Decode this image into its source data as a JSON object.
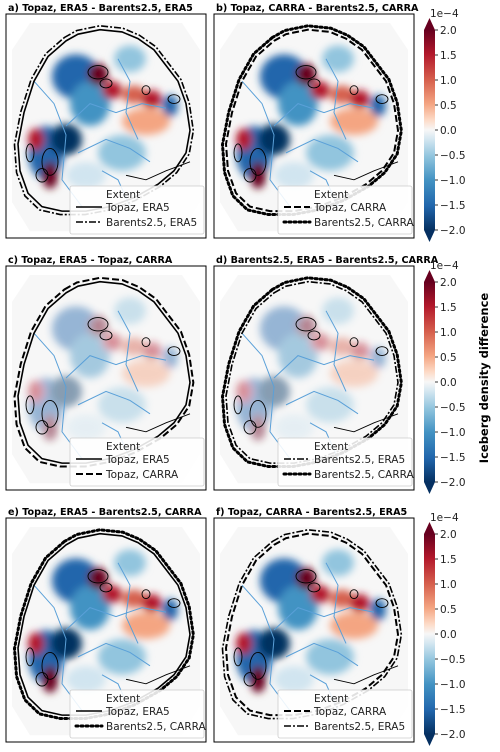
{
  "panels": [
    {
      "title": "a)  Topaz, ERA5 - Barents2.5, ERA5",
      "legend": {
        "title": "Extent",
        "entries": [
          {
            "label": "Topaz, ERA5",
            "style": "solid"
          },
          {
            "label": "Barents2.5, ERA5",
            "style": "dashdot"
          }
        ]
      }
    },
    {
      "title": "b)  Topaz, CARRA - Barents2.5, CARRA",
      "legend": {
        "title": "Extent",
        "entries": [
          {
            "label": "Topaz, CARRA",
            "style": "dashed"
          },
          {
            "label": "Barents2.5, CARRA",
            "style": "dotted"
          }
        ]
      }
    },
    {
      "title": "c)  Topaz, ERA5 - Topaz, CARRA",
      "legend": {
        "title": "Extent",
        "entries": [
          {
            "label": "Topaz, ERA5",
            "style": "solid"
          },
          {
            "label": "Topaz, CARRA",
            "style": "dashed"
          }
        ]
      }
    },
    {
      "title": "d)  Barents2.5, ERA5 - Barents2.5, CARRA",
      "legend": {
        "title": "Extent",
        "entries": [
          {
            "label": "Barents2.5, ERA5",
            "style": "dashdot"
          },
          {
            "label": "Barents2.5, CARRA",
            "style": "dotted"
          }
        ]
      }
    },
    {
      "title": "e)  Topaz, ERA5 - Barents2.5, CARRA",
      "legend": {
        "title": "Extent",
        "entries": [
          {
            "label": "Topaz, ERA5",
            "style": "solid"
          },
          {
            "label": "Barents2.5, CARRA",
            "style": "dotted"
          }
        ]
      }
    },
    {
      "title": "f)  Topaz, CARRA - Barents2.5, ERA5",
      "legend": {
        "title": "Extent",
        "entries": [
          {
            "label": "Topaz, CARRA",
            "style": "dashed"
          },
          {
            "label": "Barents2.5, ERA5",
            "style": "dashdot"
          }
        ]
      }
    }
  ],
  "colorbar": {
    "label": "Iceberg density difference",
    "exponent": "1e−4",
    "range": [
      -2.0,
      2.0
    ],
    "ticks": [
      "2.0",
      "1.5",
      "1.0",
      "0.5",
      "0.0",
      "−0.5",
      "−1.0",
      "−1.5",
      "−2.0"
    ],
    "colormap": "RdBu_r",
    "colors": {
      "max": "#67001f",
      "mid": "#f7f7f7",
      "min": "#053061"
    }
  },
  "colors": {
    "contour": "#5aa0d8",
    "coastline": "#000000",
    "ocean": "#f7f7f7"
  }
}
